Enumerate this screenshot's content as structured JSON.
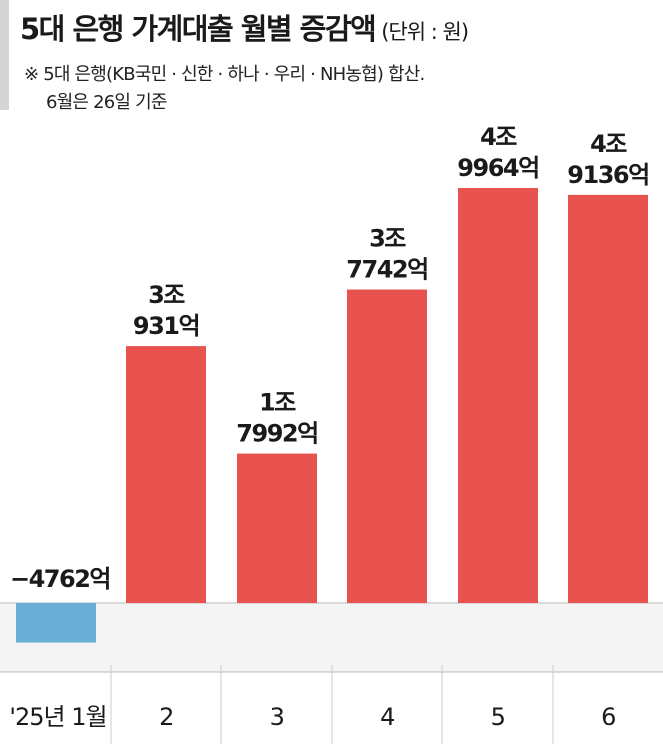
{
  "header": {
    "title": "5대 은행 가계대출 월별 증감액",
    "unit": "(단위 : 원)",
    "note_line1": "※ 5대 은행(KB국민 · 신한 · 하나 · 우리 · NH농협) 합산.",
    "note_line2": "6월은 26일 기준"
  },
  "chart_data": {
    "type": "bar",
    "categories": [
      "'25년 1월",
      "2",
      "3",
      "4",
      "5",
      "6"
    ],
    "values": [
      -4762,
      30931,
      17992,
      37742,
      49964,
      49136
    ],
    "value_unit": "억원",
    "data_labels": [
      [
        "−4762억"
      ],
      [
        "3조",
        "931억"
      ],
      [
        "1조",
        "7992억"
      ],
      [
        "3조",
        "7742억"
      ],
      [
        "4조",
        "9964억"
      ],
      [
        "4조",
        "9136억"
      ]
    ],
    "colors": {
      "positive": "#e8524f",
      "negative": "#6aaed6",
      "below_zero_band": "#f4f4f4",
      "divider": "#cccccc"
    }
  }
}
